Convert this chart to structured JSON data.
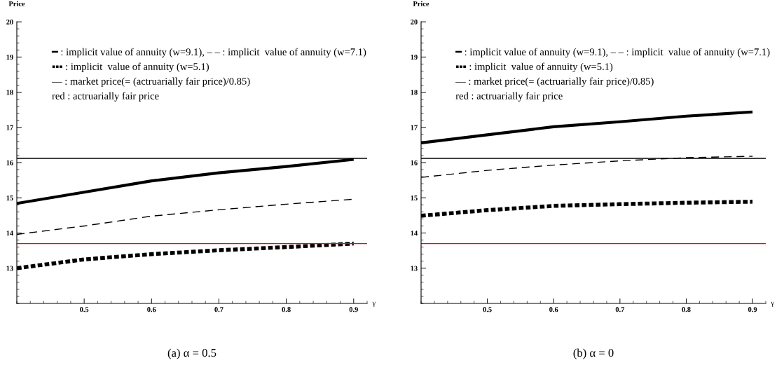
{
  "chart_data": [
    {
      "type": "line",
      "title": "(a) α = 0.5",
      "xlabel": "γ",
      "ylabel": "Price",
      "x": [
        0.4,
        0.5,
        0.6,
        0.7,
        0.8,
        0.9
      ],
      "series": [
        {
          "color": "#000000",
          "line_style": "solid",
          "values": [
            14.84,
            15.16,
            15.48,
            15.71,
            15.89,
            16.09
          ]
        },
        {
          "color": "#000000",
          "line_style": "dashed",
          "values": [
            13.96,
            14.2,
            14.48,
            14.66,
            14.82,
            14.96
          ]
        },
        {
          "color": "#000000",
          "line_style": "dotted",
          "values": [
            13.0,
            13.25,
            13.4,
            13.51,
            13.6,
            13.7
          ]
        }
      ],
      "ref_lines": [
        {
          "axis": "y",
          "value": 16.12,
          "color": "#000000"
        },
        {
          "axis": "y",
          "value": 13.7,
          "color": "#ff0000"
        }
      ],
      "annotations": [
        "━ : implicit value of annuity (w=9.1), – – : implicit  value of annuity (w=7.1)",
        "▪▪▪ : implicit  value of annuity (w=5.1)",
        "— : market price(= (actruarially fair price)/0.85)",
        "red : actruarially fair price"
      ],
      "xlim": [
        0.4,
        0.92
      ],
      "ylim": [
        12,
        20
      ],
      "xticks": [
        0.5,
        0.6,
        0.7,
        0.8,
        0.9
      ],
      "yticks": [
        13,
        14,
        15,
        16,
        17,
        18,
        19,
        20
      ],
      "grid": false,
      "legend": false
    },
    {
      "type": "line",
      "title": "(b) α = 0",
      "xlabel": "γ",
      "ylabel": "Price",
      "x": [
        0.4,
        0.5,
        0.6,
        0.7,
        0.8,
        0.9
      ],
      "series": [
        {
          "color": "#000000",
          "line_style": "solid",
          "values": [
            16.56,
            16.79,
            17.02,
            17.16,
            17.32,
            17.44
          ]
        },
        {
          "color": "#000000",
          "line_style": "dashed",
          "values": [
            15.58,
            15.78,
            15.93,
            16.05,
            16.14,
            16.18
          ]
        },
        {
          "color": "#000000",
          "line_style": "dotted",
          "values": [
            14.49,
            14.65,
            14.77,
            14.82,
            14.86,
            14.89
          ]
        }
      ],
      "ref_lines": [
        {
          "axis": "y",
          "value": 16.12,
          "color": "#000000"
        },
        {
          "axis": "y",
          "value": 13.7,
          "color": "#ff0000"
        }
      ],
      "annotations": [
        "━ : implicit value of annuity (w=9.1), – – : implicit  value of annuity (w=7.1)",
        "▪▪▪ : implicit  value of annuity (w=5.1)",
        "— : market price(= (actruarially fair price)/0.85)",
        "red : actruarially fair price"
      ],
      "xlim": [
        0.4,
        0.92
      ],
      "ylim": [
        12,
        20
      ],
      "xticks": [
        0.5,
        0.6,
        0.7,
        0.8,
        0.9
      ],
      "yticks": [
        13,
        14,
        15,
        16,
        17,
        18,
        19,
        20
      ],
      "grid": false,
      "legend": false
    }
  ]
}
